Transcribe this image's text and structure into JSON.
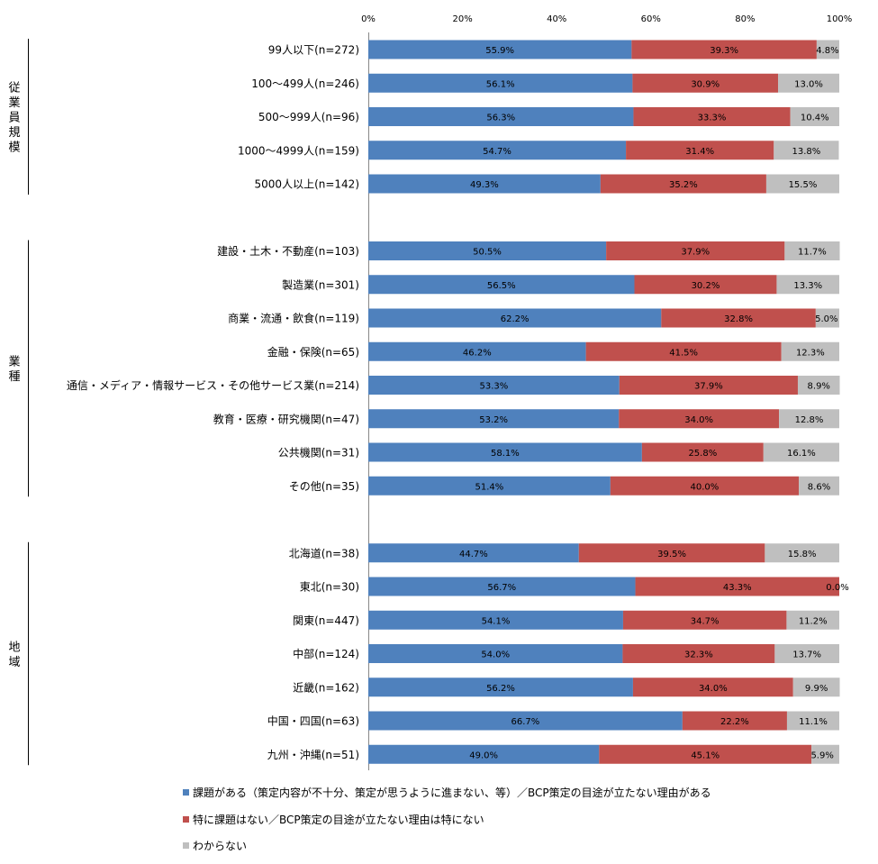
{
  "chart_data": {
    "type": "bar",
    "orientation": "horizontal",
    "stacked": true,
    "xlim": [
      0,
      100
    ],
    "x_ticks": [
      "0%",
      "20%",
      "40%",
      "60%",
      "80%",
      "100%"
    ],
    "colors": [
      "#4f81bd",
      "#c0504d",
      "#bfbfbf"
    ],
    "legend_position": "bottom",
    "series": [
      {
        "name": "課題がある（策定内容が不十分、策定が思うように進まない、等）／BCP策定の目途が立たない理由がある"
      },
      {
        "name": "特に課題はない／BCP策定の目途が立たない理由は特にない"
      },
      {
        "name": "わからない"
      }
    ],
    "groups": [
      {
        "label": "従業員規模",
        "rows": [
          {
            "label": "99人以下(n=272)",
            "values": [
              55.9,
              39.3,
              4.8
            ],
            "value_labels": [
              "55.9%",
              "39.3%",
              "4.8%"
            ]
          },
          {
            "label": "100～499人(n=246)",
            "values": [
              56.1,
              30.9,
              13.0
            ],
            "value_labels": [
              "56.1%",
              "30.9%",
              "13.0%"
            ]
          },
          {
            "label": "500～999人(n=96)",
            "values": [
              56.3,
              33.3,
              10.4
            ],
            "value_labels": [
              "56.3%",
              "33.3%",
              "10.4%"
            ]
          },
          {
            "label": "1000～4999人(n=159)",
            "values": [
              54.7,
              31.4,
              13.8
            ],
            "value_labels": [
              "54.7%",
              "31.4%",
              "13.8%"
            ]
          },
          {
            "label": "5000人以上(n=142)",
            "values": [
              49.3,
              35.2,
              15.5
            ],
            "value_labels": [
              "49.3%",
              "35.2%",
              "15.5%"
            ]
          }
        ]
      },
      {
        "label": "業種",
        "rows": [
          {
            "label": "建設・土木・不動産(n=103)",
            "values": [
              50.5,
              37.9,
              11.7
            ],
            "value_labels": [
              "50.5%",
              "37.9%",
              "11.7%"
            ]
          },
          {
            "label": "製造業(n=301)",
            "values": [
              56.5,
              30.2,
              13.3
            ],
            "value_labels": [
              "56.5%",
              "30.2%",
              "13.3%"
            ]
          },
          {
            "label": "商業・流通・飲食(n=119)",
            "values": [
              62.2,
              32.8,
              5.0
            ],
            "value_labels": [
              "62.2%",
              "32.8%",
              "5.0%"
            ]
          },
          {
            "label": "金融・保険(n=65)",
            "values": [
              46.2,
              41.5,
              12.3
            ],
            "value_labels": [
              "46.2%",
              "41.5%",
              "12.3%"
            ]
          },
          {
            "label": "通信・メディア・情報サービス・その他サービス業(n=214)",
            "values": [
              53.3,
              37.9,
              8.9
            ],
            "value_labels": [
              "53.3%",
              "37.9%",
              "8.9%"
            ]
          },
          {
            "label": "教育・医療・研究機関(n=47)",
            "values": [
              53.2,
              34.0,
              12.8
            ],
            "value_labels": [
              "53.2%",
              "34.0%",
              "12.8%"
            ]
          },
          {
            "label": "公共機関(n=31)",
            "values": [
              58.1,
              25.8,
              16.1
            ],
            "value_labels": [
              "58.1%",
              "25.8%",
              "16.1%"
            ]
          },
          {
            "label": "その他(n=35)",
            "values": [
              51.4,
              40.0,
              8.6
            ],
            "value_labels": [
              "51.4%",
              "40.0%",
              "8.6%"
            ]
          }
        ]
      },
      {
        "label": "地域",
        "rows": [
          {
            "label": "北海道(n=38)",
            "values": [
              44.7,
              39.5,
              15.8
            ],
            "value_labels": [
              "44.7%",
              "39.5%",
              "15.8%"
            ]
          },
          {
            "label": "東北(n=30)",
            "values": [
              56.7,
              43.3,
              0.0
            ],
            "value_labels": [
              "56.7%",
              "43.3%",
              "0.0%"
            ]
          },
          {
            "label": "関東(n=447)",
            "values": [
              54.1,
              34.7,
              11.2
            ],
            "value_labels": [
              "54.1%",
              "34.7%",
              "11.2%"
            ]
          },
          {
            "label": "中部(n=124)",
            "values": [
              54.0,
              32.3,
              13.7
            ],
            "value_labels": [
              "54.0%",
              "32.3%",
              "13.7%"
            ]
          },
          {
            "label": "近畿(n=162)",
            "values": [
              56.2,
              34.0,
              9.9
            ],
            "value_labels": [
              "56.2%",
              "34.0%",
              "9.9%"
            ]
          },
          {
            "label": "中国・四国(n=63)",
            "values": [
              66.7,
              22.2,
              11.1
            ],
            "value_labels": [
              "66.7%",
              "22.2%",
              "11.1%"
            ]
          },
          {
            "label": "九州・沖縄(n=51)",
            "values": [
              49.0,
              45.1,
              5.9
            ],
            "value_labels": [
              "49.0%",
              "45.1%",
              "5.9%"
            ]
          }
        ]
      }
    ]
  }
}
